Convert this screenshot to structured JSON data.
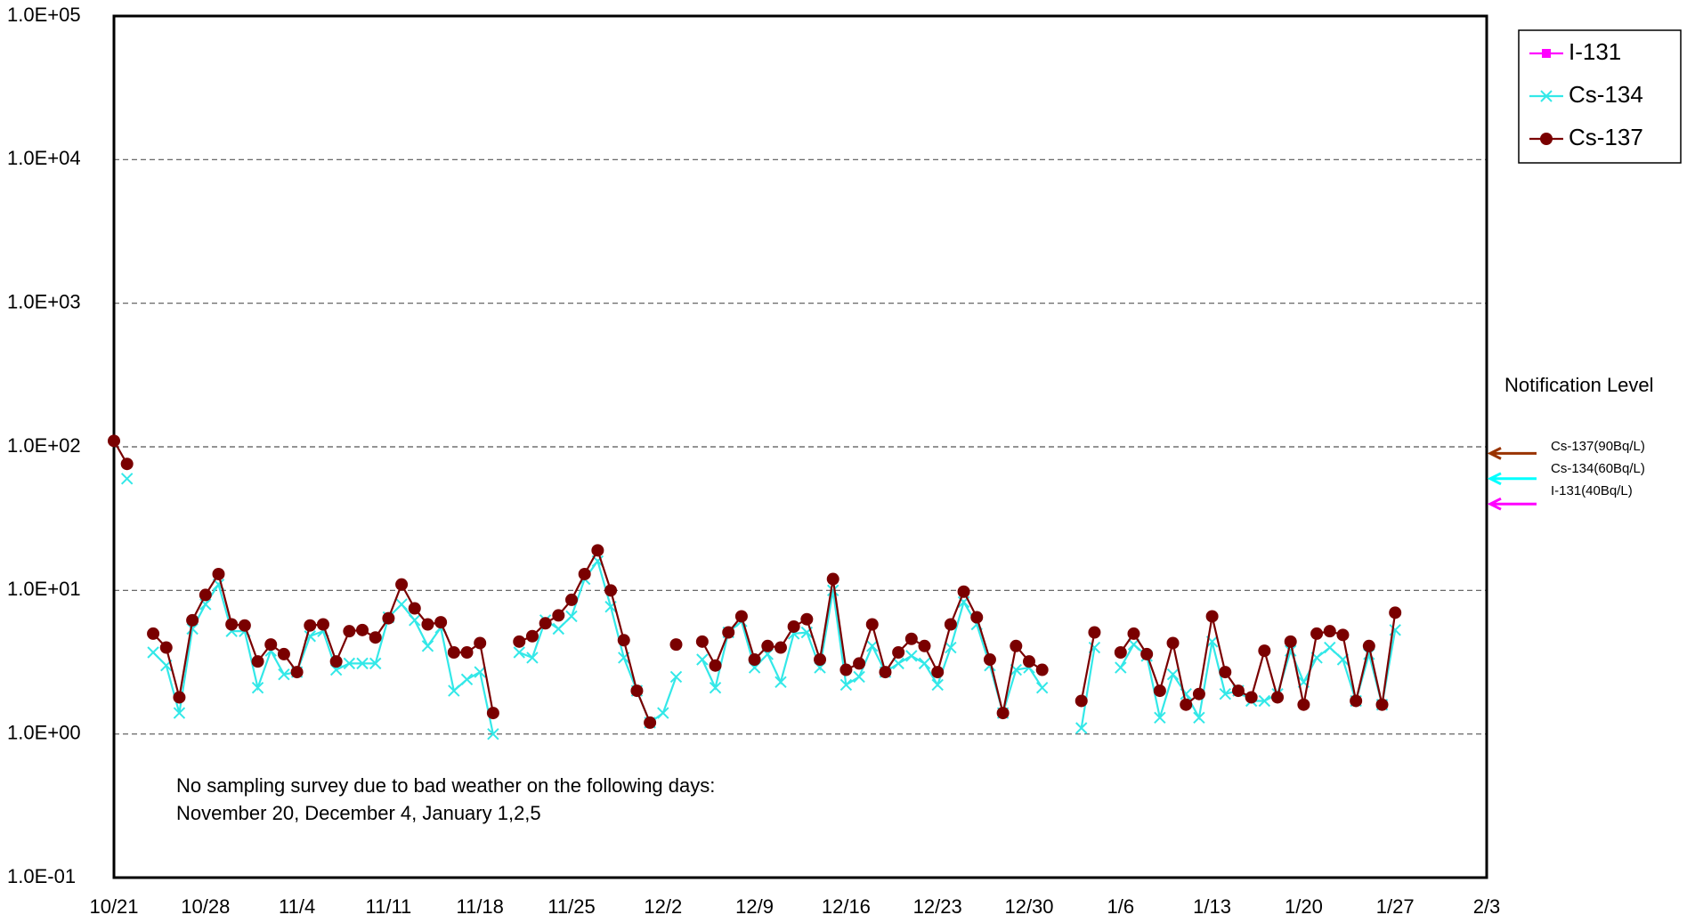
{
  "chart_data": {
    "type": "line",
    "log_scale": true,
    "grid": true,
    "legend": "top-right",
    "categories": [
      "10/21",
      null,
      null,
      null,
      null,
      null,
      null,
      "10/28",
      null,
      null,
      null,
      null,
      null,
      null,
      "11/4",
      null,
      null,
      null,
      null,
      null,
      null,
      "11/11",
      null,
      null,
      null,
      null,
      null,
      null,
      "11/18",
      null,
      null,
      null,
      null,
      null,
      null,
      "11/25",
      null,
      null,
      null,
      null,
      null,
      null,
      "12/2",
      null,
      null,
      null,
      null,
      null,
      null,
      "12/9",
      null,
      null,
      null,
      null,
      null,
      null,
      "12/16",
      null,
      null,
      null,
      null,
      null,
      null,
      "12/23",
      null,
      null,
      null,
      null,
      null,
      null,
      "12/30",
      null,
      null,
      null,
      null,
      null,
      null,
      "1/6",
      null,
      null,
      null,
      null,
      null,
      null,
      "1/13",
      null,
      null,
      null,
      null,
      null,
      null,
      "1/20",
      null,
      null,
      null,
      null,
      null,
      null,
      "1/27",
      null,
      null,
      null,
      null,
      null,
      null,
      "2/3"
    ],
    "series": [
      {
        "name": "I-131",
        "color": "#ff00ff",
        "marker": "square",
        "values": [
          null,
          null,
          null,
          null,
          null,
          null,
          null,
          null,
          null,
          null,
          null,
          null,
          null,
          null,
          null,
          null,
          null,
          null,
          null,
          null,
          null,
          null,
          null,
          null,
          null,
          null,
          null,
          null,
          null,
          null,
          null,
          null,
          null,
          null,
          null,
          null,
          null,
          null,
          null,
          null,
          null,
          null,
          null,
          null,
          null,
          null,
          null,
          null,
          null,
          null,
          null,
          null,
          null,
          null,
          null,
          null,
          null,
          null,
          null,
          null,
          null,
          null,
          null,
          null,
          null,
          null,
          null,
          null,
          null,
          null,
          null,
          null,
          null,
          null,
          null,
          null,
          null,
          null,
          null,
          null,
          null,
          null,
          null,
          null,
          null,
          null,
          null,
          null,
          null,
          null,
          null,
          null,
          null,
          null,
          null,
          null,
          null,
          null,
          null,
          null,
          null,
          null,
          null,
          null,
          null,
          null
        ]
      },
      {
        "name": "Cs-134",
        "color": "#33e8e8",
        "marker": "x",
        "values": [
          null,
          60,
          null,
          3.7,
          3.0,
          1.4,
          5.4,
          8.0,
          11,
          5.2,
          5.2,
          2.1,
          3.8,
          2.6,
          2.7,
          4.8,
          5.2,
          2.8,
          3.1,
          3.1,
          3.1,
          6.5,
          8.0,
          6.2,
          4.1,
          5.5,
          2.0,
          2.4,
          2.7,
          1.0,
          null,
          3.7,
          3.4,
          6.2,
          5.4,
          6.6,
          12,
          16,
          7.7,
          3.4,
          2.0,
          1.2,
          1.4,
          2.5,
          null,
          3.3,
          2.1,
          5.1,
          6.1,
          2.9,
          3.6,
          2.3,
          5.0,
          5.1,
          2.9,
          10,
          2.2,
          2.5,
          4.1,
          2.7,
          3.1,
          3.5,
          3.1,
          2.2,
          4.0,
          8.3,
          5.8,
          3.0,
          1.4,
          2.8,
          2.9,
          2.1,
          null,
          null,
          1.1,
          4.0,
          null,
          2.9,
          4.2,
          3.5,
          1.3,
          2.6,
          1.9,
          1.3,
          4.4,
          1.9,
          2.0,
          1.7,
          1.7,
          1.9,
          3.8,
          2.3,
          3.4,
          4.0,
          3.3,
          1.7,
          3.6,
          1.6,
          5.3,
          null,
          null,
          null,
          null,
          null,
          null,
          null
        ]
      },
      {
        "name": "Cs-137",
        "color": "#7a0000",
        "marker": "circle",
        "values": [
          110,
          76,
          null,
          5.0,
          4.0,
          1.8,
          6.2,
          9.3,
          13,
          5.8,
          5.7,
          3.2,
          4.2,
          3.6,
          2.7,
          5.7,
          5.8,
          3.2,
          5.2,
          5.3,
          4.7,
          6.4,
          11,
          7.5,
          5.8,
          6.0,
          3.7,
          3.7,
          4.3,
          1.4,
          null,
          4.4,
          4.8,
          5.9,
          6.7,
          8.6,
          13,
          19,
          10,
          4.5,
          2.0,
          1.2,
          null,
          4.2,
          null,
          4.4,
          3.0,
          5.1,
          6.6,
          3.3,
          4.1,
          4.0,
          5.6,
          6.3,
          3.3,
          12,
          2.8,
          3.1,
          5.8,
          2.7,
          3.7,
          4.6,
          4.1,
          2.7,
          5.8,
          9.8,
          6.5,
          3.3,
          1.4,
          4.1,
          3.2,
          2.8,
          null,
          null,
          1.7,
          5.1,
          null,
          3.7,
          5.0,
          3.6,
          2.0,
          4.3,
          1.6,
          1.9,
          6.6,
          2.7,
          2.0,
          1.8,
          3.8,
          1.8,
          4.4,
          1.6,
          5.0,
          5.2,
          4.9,
          1.7,
          4.1,
          1.6,
          7.0,
          null,
          null,
          null,
          null,
          null,
          null,
          null
        ]
      }
    ],
    "ylim": [
      0.1,
      100000
    ],
    "yticks": [
      {
        "value": 0.1,
        "label": "1.0E-01"
      },
      {
        "value": 1,
        "label": "1.0E+00"
      },
      {
        "value": 10,
        "label": "1.0E+01"
      },
      {
        "value": 100,
        "label": "1.0E+02"
      },
      {
        "value": 1000,
        "label": "1.0E+03"
      },
      {
        "value": 10000,
        "label": "1.0E+04"
      },
      {
        "value": 100000,
        "label": "1.0E+05"
      }
    ],
    "annotations": [
      "No sampling survey due to bad weather on the following days:",
      "November 20, December 4, January 1,2,5"
    ],
    "notification_title": "Notification Level",
    "notification_levels": [
      {
        "label": "Cs-137(90Bq/L)",
        "value": 90,
        "color": "#993300"
      },
      {
        "label": "Cs-134(60Bq/L)",
        "value": 60,
        "color": "#00ffff"
      },
      {
        "label": "I-131(40Bq/L)",
        "value": 40,
        "color": "#ff00ff"
      }
    ]
  }
}
